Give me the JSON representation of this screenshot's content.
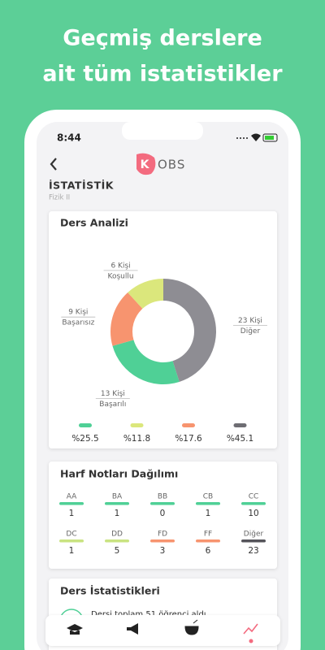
{
  "header": {
    "line1": "Geçmiş derslere",
    "line2": "ait tüm istatistikler"
  },
  "status_bar": {
    "time": "8:44"
  },
  "app_bar": {
    "logo_letter": "K",
    "logo_text": "OBS"
  },
  "page": {
    "title": "İSTATİSTİK",
    "subtitle": "Fizik II"
  },
  "ders_analizi": {
    "title": "Ders Analizi",
    "chart_data": {
      "type": "donut",
      "categories": [
        "Diğer",
        "Başarılı",
        "Başarısız",
        "Koşullu"
      ],
      "values": [
        23,
        13,
        9,
        6
      ],
      "value_labels": [
        "23 Kişi",
        "13 Kişi",
        "9 Kişi",
        "6 Kişi"
      ],
      "colors": [
        "#8e8d93",
        "#4fd096",
        "#f7946f",
        "#dbe77c"
      ]
    },
    "legend": [
      {
        "color": "#4fd096",
        "value": 25.5,
        "label": "%25.5"
      },
      {
        "color": "#dbe77c",
        "value": 11.8,
        "label": "%11.8"
      },
      {
        "color": "#f7946f",
        "value": 17.6,
        "label": "%17.6"
      },
      {
        "color": "#6e6d73",
        "value": 45.1,
        "label": "%45.1"
      }
    ]
  },
  "harf_notlari": {
    "title": "Harf Notları Dağılımı",
    "items": [
      {
        "grade": "AA",
        "count": 1,
        "color": "#4fd096"
      },
      {
        "grade": "BA",
        "count": 1,
        "color": "#4fd096"
      },
      {
        "grade": "BB",
        "count": 0,
        "color": "#4fd096"
      },
      {
        "grade": "CB",
        "count": 1,
        "color": "#4fd096"
      },
      {
        "grade": "CC",
        "count": 10,
        "color": "#4fd096"
      },
      {
        "grade": "DC",
        "count": 1,
        "color": "#c9e381"
      },
      {
        "grade": "DD",
        "count": 5,
        "color": "#c9e381"
      },
      {
        "grade": "FD",
        "count": 3,
        "color": "#f7946f"
      },
      {
        "grade": "FF",
        "count": 6,
        "color": "#f7946f"
      },
      {
        "grade": "Diğer",
        "count": 23,
        "color": "#55545a"
      }
    ]
  },
  "ders_istatistikleri": {
    "title": "Ders İstatistikleri",
    "line1": "Dersi toplam 51 öğrenci aldı"
  }
}
